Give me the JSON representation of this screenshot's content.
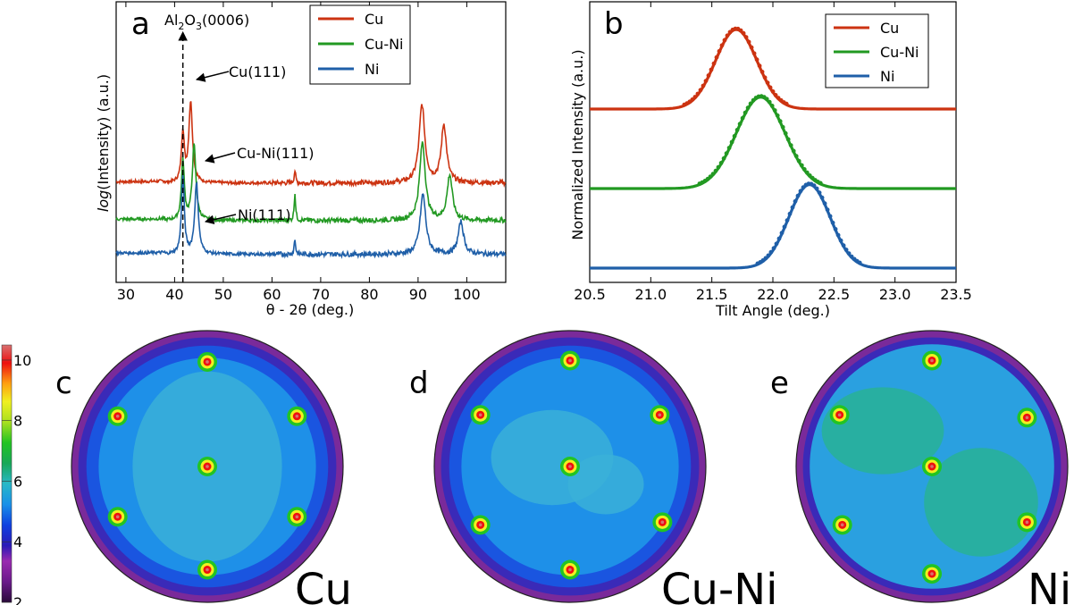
{
  "colors": {
    "cu": "#cc3311",
    "cuni": "#229922",
    "ni": "#1f5fa8"
  },
  "chart_data": [
    {
      "panel": "a",
      "type": "line",
      "xlabel": "θ - 2θ (deg.)",
      "ylabel_italic": "log",
      "ylabel_rest": "(Intensity)  (a.u.)",
      "xlim": [
        28,
        108
      ],
      "xticks": [
        "30",
        "40",
        "50",
        "60",
        "70",
        "80",
        "90",
        "100"
      ],
      "xtick_values": [
        30,
        40,
        50,
        60,
        70,
        80,
        90,
        100
      ],
      "reference_line": {
        "x": 41.7,
        "label_main": "Al",
        "label_sub1": "2",
        "label_mid": "O",
        "label_sub2": "3",
        "label_end": "(0006)"
      },
      "annotations": [
        {
          "text": "Cu(111)",
          "x": 43.3
        },
        {
          "text": "Cu-Ni(111)",
          "x": 44.0
        },
        {
          "text": "Ni(111)",
          "x": 44.5
        }
      ],
      "series": [
        {
          "name": "Cu",
          "color_key": "cu",
          "baseline": 3.4,
          "peaks": [
            [
              41.7,
              2.0,
              0.35
            ],
            [
              43.3,
              3.2,
              0.45
            ],
            [
              64.7,
              0.5,
              0.18
            ],
            [
              90.8,
              3.1,
              0.7
            ],
            [
              95.3,
              2.3,
              0.65
            ]
          ]
        },
        {
          "name": "Cu-Ni",
          "color_key": "cuni",
          "baseline": 1.9,
          "peaks": [
            [
              41.7,
              2.4,
              0.35
            ],
            [
              44.0,
              3.0,
              0.45
            ],
            [
              64.7,
              1.1,
              0.18
            ],
            [
              90.9,
              3.1,
              0.7
            ],
            [
              96.5,
              1.8,
              0.65
            ]
          ]
        },
        {
          "name": "Ni",
          "color_key": "ni",
          "baseline": 0.55,
          "peaks": [
            [
              41.7,
              3.1,
              0.35
            ],
            [
              44.5,
              2.8,
              0.45
            ],
            [
              64.7,
              0.6,
              0.18
            ],
            [
              91.0,
              2.4,
              0.7
            ],
            [
              98.8,
              1.3,
              0.65
            ]
          ]
        }
      ],
      "legend": [
        "Cu",
        "Cu-Ni",
        "Ni"
      ]
    },
    {
      "panel": "b",
      "type": "line",
      "xlabel": "Tilt Angle (deg.)",
      "ylabel": "Normalized Intensity  (a.u.)",
      "xlim": [
        20.5,
        23.5
      ],
      "xticks": [
        "20.5",
        "21.0",
        "21.5",
        "22.0",
        "22.5",
        "23.0",
        "23.5"
      ],
      "xtick_values": [
        20.5,
        21.0,
        21.5,
        22.0,
        22.5,
        23.0,
        23.5
      ],
      "series": [
        {
          "name": "Cu",
          "color_key": "cu",
          "center": 21.7,
          "width": 0.17,
          "offset": 2.0,
          "height": 1.0
        },
        {
          "name": "Cu-Ni",
          "color_key": "cuni",
          "center": 21.9,
          "width": 0.2,
          "offset": 1.0,
          "height": 1.15
        },
        {
          "name": "Ni",
          "color_key": "ni",
          "center": 22.3,
          "width": 0.17,
          "offset": 0.0,
          "height": 1.05
        }
      ],
      "legend": [
        "Cu",
        "Cu-Ni",
        "Ni"
      ]
    },
    {
      "panel": "c-e",
      "type": "heatmap",
      "colorbar": {
        "ticks": [
          "2",
          "4",
          "6",
          "8",
          "10"
        ],
        "min": 2,
        "max": 10.5
      },
      "pole_figures": [
        {
          "label": "c",
          "name": "Cu",
          "spots": [
            [
              0,
              -0.77
            ],
            [
              -0.66,
              -0.37
            ],
            [
              0.66,
              -0.37
            ],
            [
              -0.66,
              0.37
            ],
            [
              0.66,
              0.37
            ],
            [
              0,
              0.76
            ],
            [
              0,
              0
            ]
          ]
        },
        {
          "label": "d",
          "name": "Cu-Ni",
          "spots": [
            [
              0,
              -0.78
            ],
            [
              -0.66,
              -0.38
            ],
            [
              0.66,
              -0.38
            ],
            [
              -0.66,
              0.43
            ],
            [
              0.68,
              0.41
            ],
            [
              0,
              0.76
            ],
            [
              0,
              0
            ]
          ]
        },
        {
          "label": "e",
          "name": "Ni",
          "spots": [
            [
              0,
              -0.78
            ],
            [
              -0.68,
              -0.38
            ],
            [
              0.7,
              -0.36
            ],
            [
              -0.66,
              0.43
            ],
            [
              0.7,
              0.41
            ],
            [
              0,
              0.79
            ],
            [
              0,
              0
            ]
          ]
        }
      ]
    }
  ]
}
